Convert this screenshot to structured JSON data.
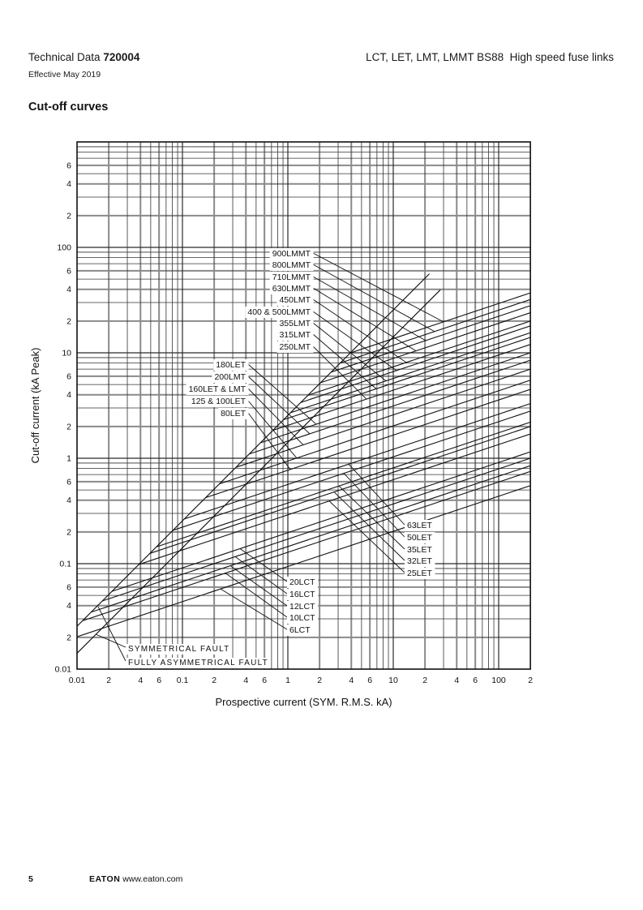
{
  "header": {
    "doc_type": "Technical Data",
    "doc_number": "720004",
    "effective": "Effective May 2019",
    "product_title": "LCT, LET, LMT, LMMT BS88  High speed fuse links"
  },
  "section_title": "Cut-off curves",
  "footer": {
    "page_number": "5",
    "brand": "EATON",
    "url": "www.eaton.com"
  },
  "chart_data": {
    "type": "line",
    "title": "Cut-off curves",
    "xlabel": "Prospective current (SYM. R.M.S. kA)",
    "ylabel": "Cut-off current (kA Peak)",
    "x_scale": "log",
    "y_scale": "log",
    "xlim": [
      0.01,
      200
    ],
    "ylim": [
      0.01,
      1000
    ],
    "grid": "full log-log grid, minor lines 2-9 each decade, emphasized lines at 2/4/6",
    "x_tick_values": [
      0.01,
      0.02,
      0.04,
      0.06,
      0.1,
      0.2,
      0.4,
      0.6,
      1,
      2,
      4,
      6,
      10,
      20,
      40,
      60,
      100,
      200
    ],
    "x_tick_labels": [
      "0.01",
      "2",
      "4",
      "6",
      "0.1",
      "2",
      "4",
      "6",
      "1",
      "2",
      "4",
      "6",
      "10",
      "2",
      "4",
      "6",
      "100",
      "2"
    ],
    "y_tick_values": [
      0.01,
      0.02,
      0.04,
      0.06,
      0.1,
      0.2,
      0.4,
      0.6,
      1,
      2,
      4,
      6,
      10,
      20,
      40,
      60,
      100,
      200,
      400,
      600
    ],
    "y_tick_labels": [
      "0.01",
      "2",
      "4",
      "6",
      "0.1",
      "2",
      "4",
      "6",
      "1",
      "2",
      "4",
      "6",
      "10",
      "2",
      "4",
      "6",
      "100",
      "2",
      "4",
      "6"
    ],
    "cutoff_model": "cut-off peak = k × I^(1/3), each curve starts on the fully asymmetrical fault line and ends at 200 kA",
    "fault_lines": [
      {
        "label": "SYMMETRICAL FAULT",
        "peak_factor": 1.414,
        "x_start": 0.01,
        "x_end": 28
      },
      {
        "label": "FULLY ASYMMETRICAL FAULT",
        "peak_factor": 2.55,
        "x_start": 0.01,
        "x_end": 22
      }
    ],
    "curves": [
      {
        "label": "900LMMT",
        "cutoff_at_200kA": 37.0
      },
      {
        "label": "800LMMT",
        "cutoff_at_200kA": 32.0
      },
      {
        "label": "710LMMT",
        "cutoff_at_200kA": 28.0
      },
      {
        "label": "630LMMT",
        "cutoff_at_200kA": 24.0
      },
      {
        "label": "450LMT",
        "cutoff_at_200kA": 20.0
      },
      {
        "label": "400 & 500LMMT",
        "cutoff_at_200kA": 18.0
      },
      {
        "label": "355LMT",
        "cutoff_at_200kA": 15.5
      },
      {
        "label": "315LMT",
        "cutoff_at_200kA": 14.0
      },
      {
        "label": "250LMT",
        "cutoff_at_200kA": 12.0
      },
      {
        "label": "180LET",
        "cutoff_at_200kA": 10.0
      },
      {
        "label": "200LMT",
        "cutoff_at_200kA": 8.5
      },
      {
        "label": "160LET & LMT",
        "cutoff_at_200kA": 7.0
      },
      {
        "label": "125 & 100LET",
        "cutoff_at_200kA": 5.5
      },
      {
        "label": "80LET",
        "cutoff_at_200kA": 4.5
      },
      {
        "label": "63LET",
        "cutoff_at_200kA": 3.3
      },
      {
        "label": "50LET",
        "cutoff_at_200kA": 2.8
      },
      {
        "label": "35LET",
        "cutoff_at_200kA": 2.2
      },
      {
        "label": "32LET",
        "cutoff_at_200kA": 2.0
      },
      {
        "label": "25LET",
        "cutoff_at_200kA": 1.7
      },
      {
        "label": "20LCT",
        "cutoff_at_200kA": 1.15
      },
      {
        "label": "16LCT",
        "cutoff_at_200kA": 1.0
      },
      {
        "label": "12LCT",
        "cutoff_at_200kA": 0.85
      },
      {
        "label": "10LCT",
        "cutoff_at_200kA": 0.75
      },
      {
        "label": "6LCT",
        "cutoff_at_200kA": 0.55
      }
    ]
  }
}
